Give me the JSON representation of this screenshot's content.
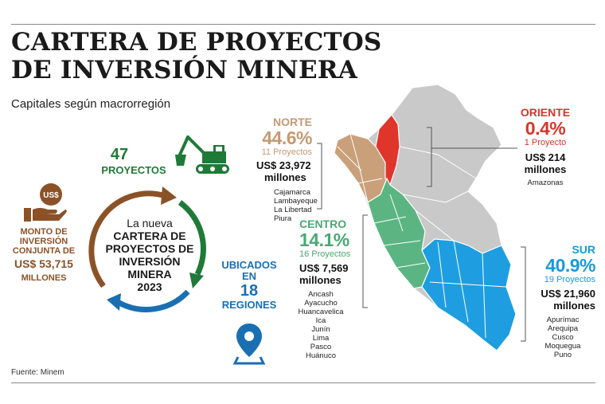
{
  "title_line1": "CARTERA DE PROYECTOS",
  "title_line2": "DE INVERSIÓN MINERA",
  "subtitle": "Capitales según macrorregión",
  "source": "Fuente: Minem",
  "projects": {
    "count": "47",
    "label": "PROYECTOS"
  },
  "investment": {
    "line1": "MONTO DE",
    "line2": "INVERSIÓN",
    "line3": "CONJUNTA DE",
    "amount": "US$ 53,715",
    "unit": "MILLONES",
    "coin_label": "US$"
  },
  "cycle_text": [
    "La nueva",
    "CARTERA DE",
    "PROYECTOS DE",
    "INVERSIÓN",
    "MINERA",
    "2023"
  ],
  "located": {
    "line1": "UBICADOS",
    "line2": "EN",
    "count": "18",
    "line3": "REGIONES"
  },
  "regions": {
    "norte": {
      "name": "NORTE",
      "pct": "44.6%",
      "projects": "11 Proyectos",
      "amount": "US$ 23,972",
      "unit": "millones",
      "list": [
        "Cajamarca",
        "Lambayeque",
        "La Libertad",
        "Piura"
      ],
      "color": "#c9a07a"
    },
    "oriente": {
      "name": "ORIENTE",
      "pct": "0.4%",
      "projects": "1 Proyecto",
      "amount": "US$ 214",
      "unit": "millones",
      "list": [
        "Amazonas"
      ],
      "color": "#e0352b"
    },
    "centro": {
      "name": "CENTRO",
      "pct": "14.1%",
      "projects": "16 Proyectos",
      "amount": "US$ 7,569",
      "unit": "millones",
      "list": [
        "Ancash",
        "Ayacucho",
        "Huancavelica",
        "Ica",
        "Junín",
        "Lima",
        "Pasco",
        "Huánuco"
      ],
      "color": "#5bb583"
    },
    "sur": {
      "name": "SUR",
      "pct": "40.9%",
      "projects": "19 Proyectos",
      "amount": "US$ 21,960",
      "unit": "millones",
      "list": [
        "Apurímac",
        "Arequipa",
        "Cusco",
        "Moquegua",
        "Puno"
      ],
      "color": "#1e9ee0"
    }
  },
  "icons": {
    "excavator": "excavator-icon",
    "hand_coin": "hand-coin-icon",
    "location_pin": "location-pin-icon",
    "cycle_arrows": "cycle-arrows-icon"
  },
  "colors": {
    "brown": "#8b5227",
    "green": "#1f7a38",
    "blue": "#1a6fb3",
    "map_gray": "#c9c9c9"
  }
}
